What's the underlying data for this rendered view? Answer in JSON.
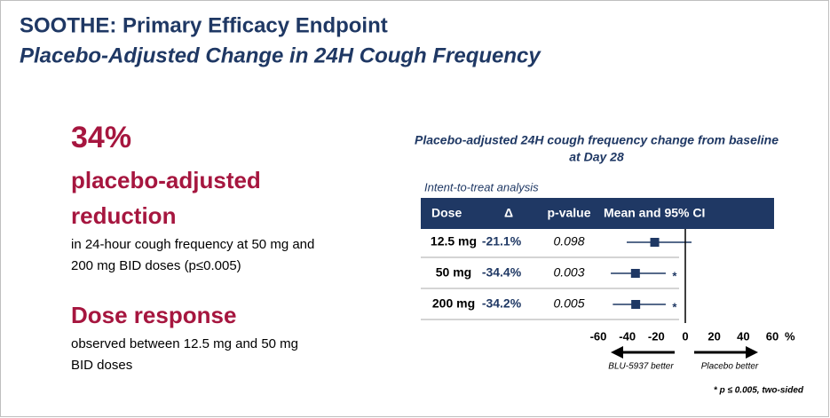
{
  "header": {
    "title": "SOOTHE: Primary Efficacy Endpoint",
    "subtitle": "Placebo-Adjusted Change in 24H Cough Frequency"
  },
  "summary": {
    "headline": "34%",
    "headline_lines": [
      "placebo-adjusted",
      "reduction"
    ],
    "detail_lines": [
      "in 24-hour cough frequency at 50 mg and",
      "200 mg BID doses (p≤0.005)"
    ],
    "dose_heading": "Dose response",
    "dose_lines": [
      "observed between 12.5 mg and 50 mg",
      "BID doses"
    ]
  },
  "chart_data": {
    "type": "forest",
    "title_lines": [
      "Placebo-adjusted 24H cough frequency change from baseline",
      "at Day 28"
    ],
    "subtitle": "Intent-to-treat analysis",
    "columns": [
      "Dose",
      "Δ",
      "p-value",
      "Mean and 95% CI"
    ],
    "categories": [
      "12.5 mg",
      "50 mg",
      "200 mg"
    ],
    "values": [
      -21.1,
      -34.4,
      -34.2
    ],
    "value_labels": [
      "-21.1%",
      "-34.4%",
      "-34.2%"
    ],
    "ci_low": [
      -40.4,
      -51.4,
      -50
    ],
    "ci_high": [
      4.3,
      -13.5,
      -13.5
    ],
    "p_values": [
      0.098,
      0.003,
      0.005
    ],
    "significance": [
      null,
      "*",
      "*"
    ],
    "xlim": [
      -60,
      60
    ],
    "xticks": [
      -60,
      -40,
      -20,
      0,
      20,
      40,
      60
    ],
    "x_unit": "%",
    "annotations": [
      "BLU-5937 better",
      "Placebo better"
    ],
    "footnote": "* p ≤ 0.005, two-sided",
    "color": "#1f3864"
  }
}
